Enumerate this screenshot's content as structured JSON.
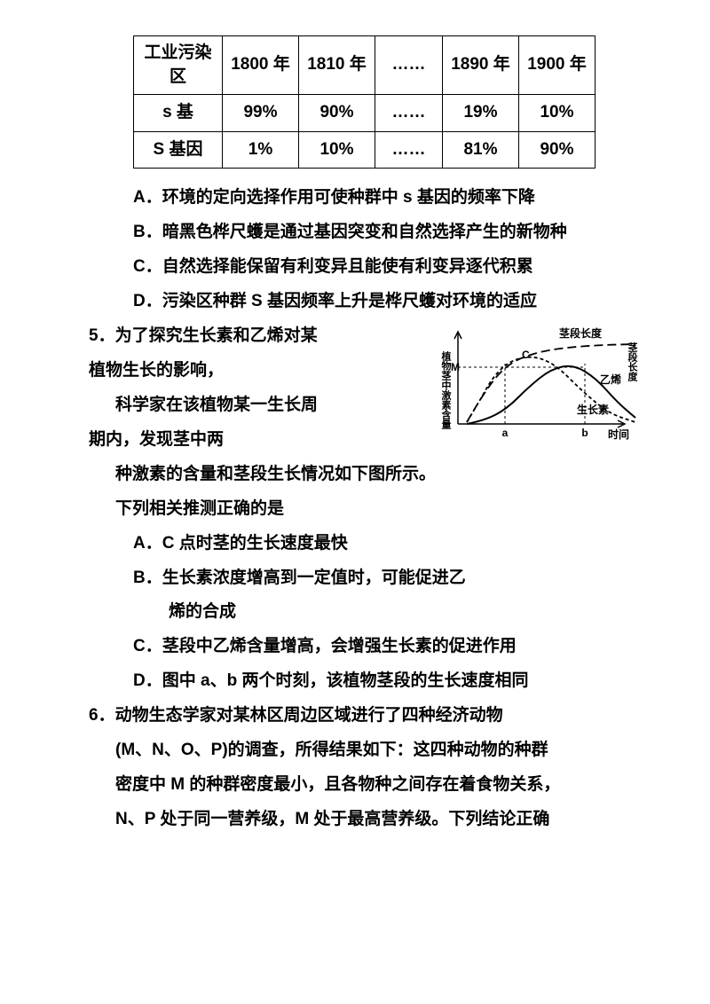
{
  "table": {
    "header": [
      "工业污染区",
      "1800 年",
      "1810 年",
      "……",
      "1890 年",
      "1900 年"
    ],
    "rows": [
      [
        "s 基",
        "99%",
        "90%",
        "……",
        "19%",
        "10%"
      ],
      [
        "S 基因",
        "1%",
        "10%",
        "……",
        "81%",
        "90%"
      ]
    ]
  },
  "q4_options": {
    "A": "A．环境的定向选择作用可使种群中 s 基因的频率下降",
    "B": "B．暗黑色桦尺蠖是通过基因突变和自然选择产生的新物种",
    "C": "C．自然选择能保留有利变异且能使有利变异逐代积累",
    "D": "D．污染区种群 S 基因频率上升是桦尺蠖对环境的适应"
  },
  "q5": {
    "stem1": "5．为了探究生长素和乙烯对某",
    "stem2": "植物生长的影响，",
    "stem3": "科学家在该植物某一生长周",
    "stem4": "期内，发现茎中两",
    "stem5": "种激素的含量和茎段生长情况如下图所示。",
    "stem6": "下列相关推测正确的是",
    "A": "A．C 点时茎的生长速度最快",
    "B1": "B．生长素浓度增高到一定值时，可能促进乙",
    "B2": "烯的合成",
    "C": "C．茎段中乙烯含量增高，会增强生长素的促进作用",
    "D": "D．图中 a、b 两个时刻，该植物茎段的生长速度相同"
  },
  "q6": {
    "stem": "6．动物生态学家对某林区周边区域进行了四种经济动物",
    "l2": "(M、N、O、P)的调查，所得结果如下：这四种动物的种群",
    "l3": "密度中 M 的种群密度最小，且各物种之间存在着食物关系，",
    "l4": "N、P 处于同一营养级，M 处于最高营养级。下列结论正确"
  },
  "chart": {
    "ylabel": "植物茎中激素含量",
    "xlabel": "时间",
    "top_label": "茎段长度",
    "right_label": "茎段长度",
    "line_len": "茎段长度",
    "line_eth": "乙烯",
    "line_aux": "生长素",
    "label_c": "C",
    "label_m": "M",
    "tick_a": "a",
    "tick_b": "b",
    "colors": {
      "stroke": "#000000",
      "bg": "#ffffff"
    },
    "series": {
      "stem_len": [
        [
          10,
          100
        ],
        [
          30,
          65
        ],
        [
          55,
          35
        ],
        [
          85,
          22
        ],
        [
          120,
          16
        ],
        [
          160,
          13
        ],
        [
          200,
          12
        ]
      ],
      "auxin": [
        [
          10,
          100
        ],
        [
          25,
          75
        ],
        [
          40,
          48
        ],
        [
          60,
          30
        ],
        [
          85,
          25
        ],
        [
          110,
          35
        ],
        [
          140,
          65
        ],
        [
          170,
          90
        ],
        [
          200,
          100
        ]
      ],
      "ethylene": [
        [
          10,
          102
        ],
        [
          30,
          98
        ],
        [
          55,
          85
        ],
        [
          80,
          60
        ],
        [
          105,
          40
        ],
        [
          130,
          35
        ],
        [
          155,
          50
        ],
        [
          180,
          78
        ],
        [
          200,
          95
        ]
      ]
    },
    "a_x": 53,
    "b_x": 143,
    "m_y": 38,
    "c_pt": [
      72,
      28
    ]
  }
}
